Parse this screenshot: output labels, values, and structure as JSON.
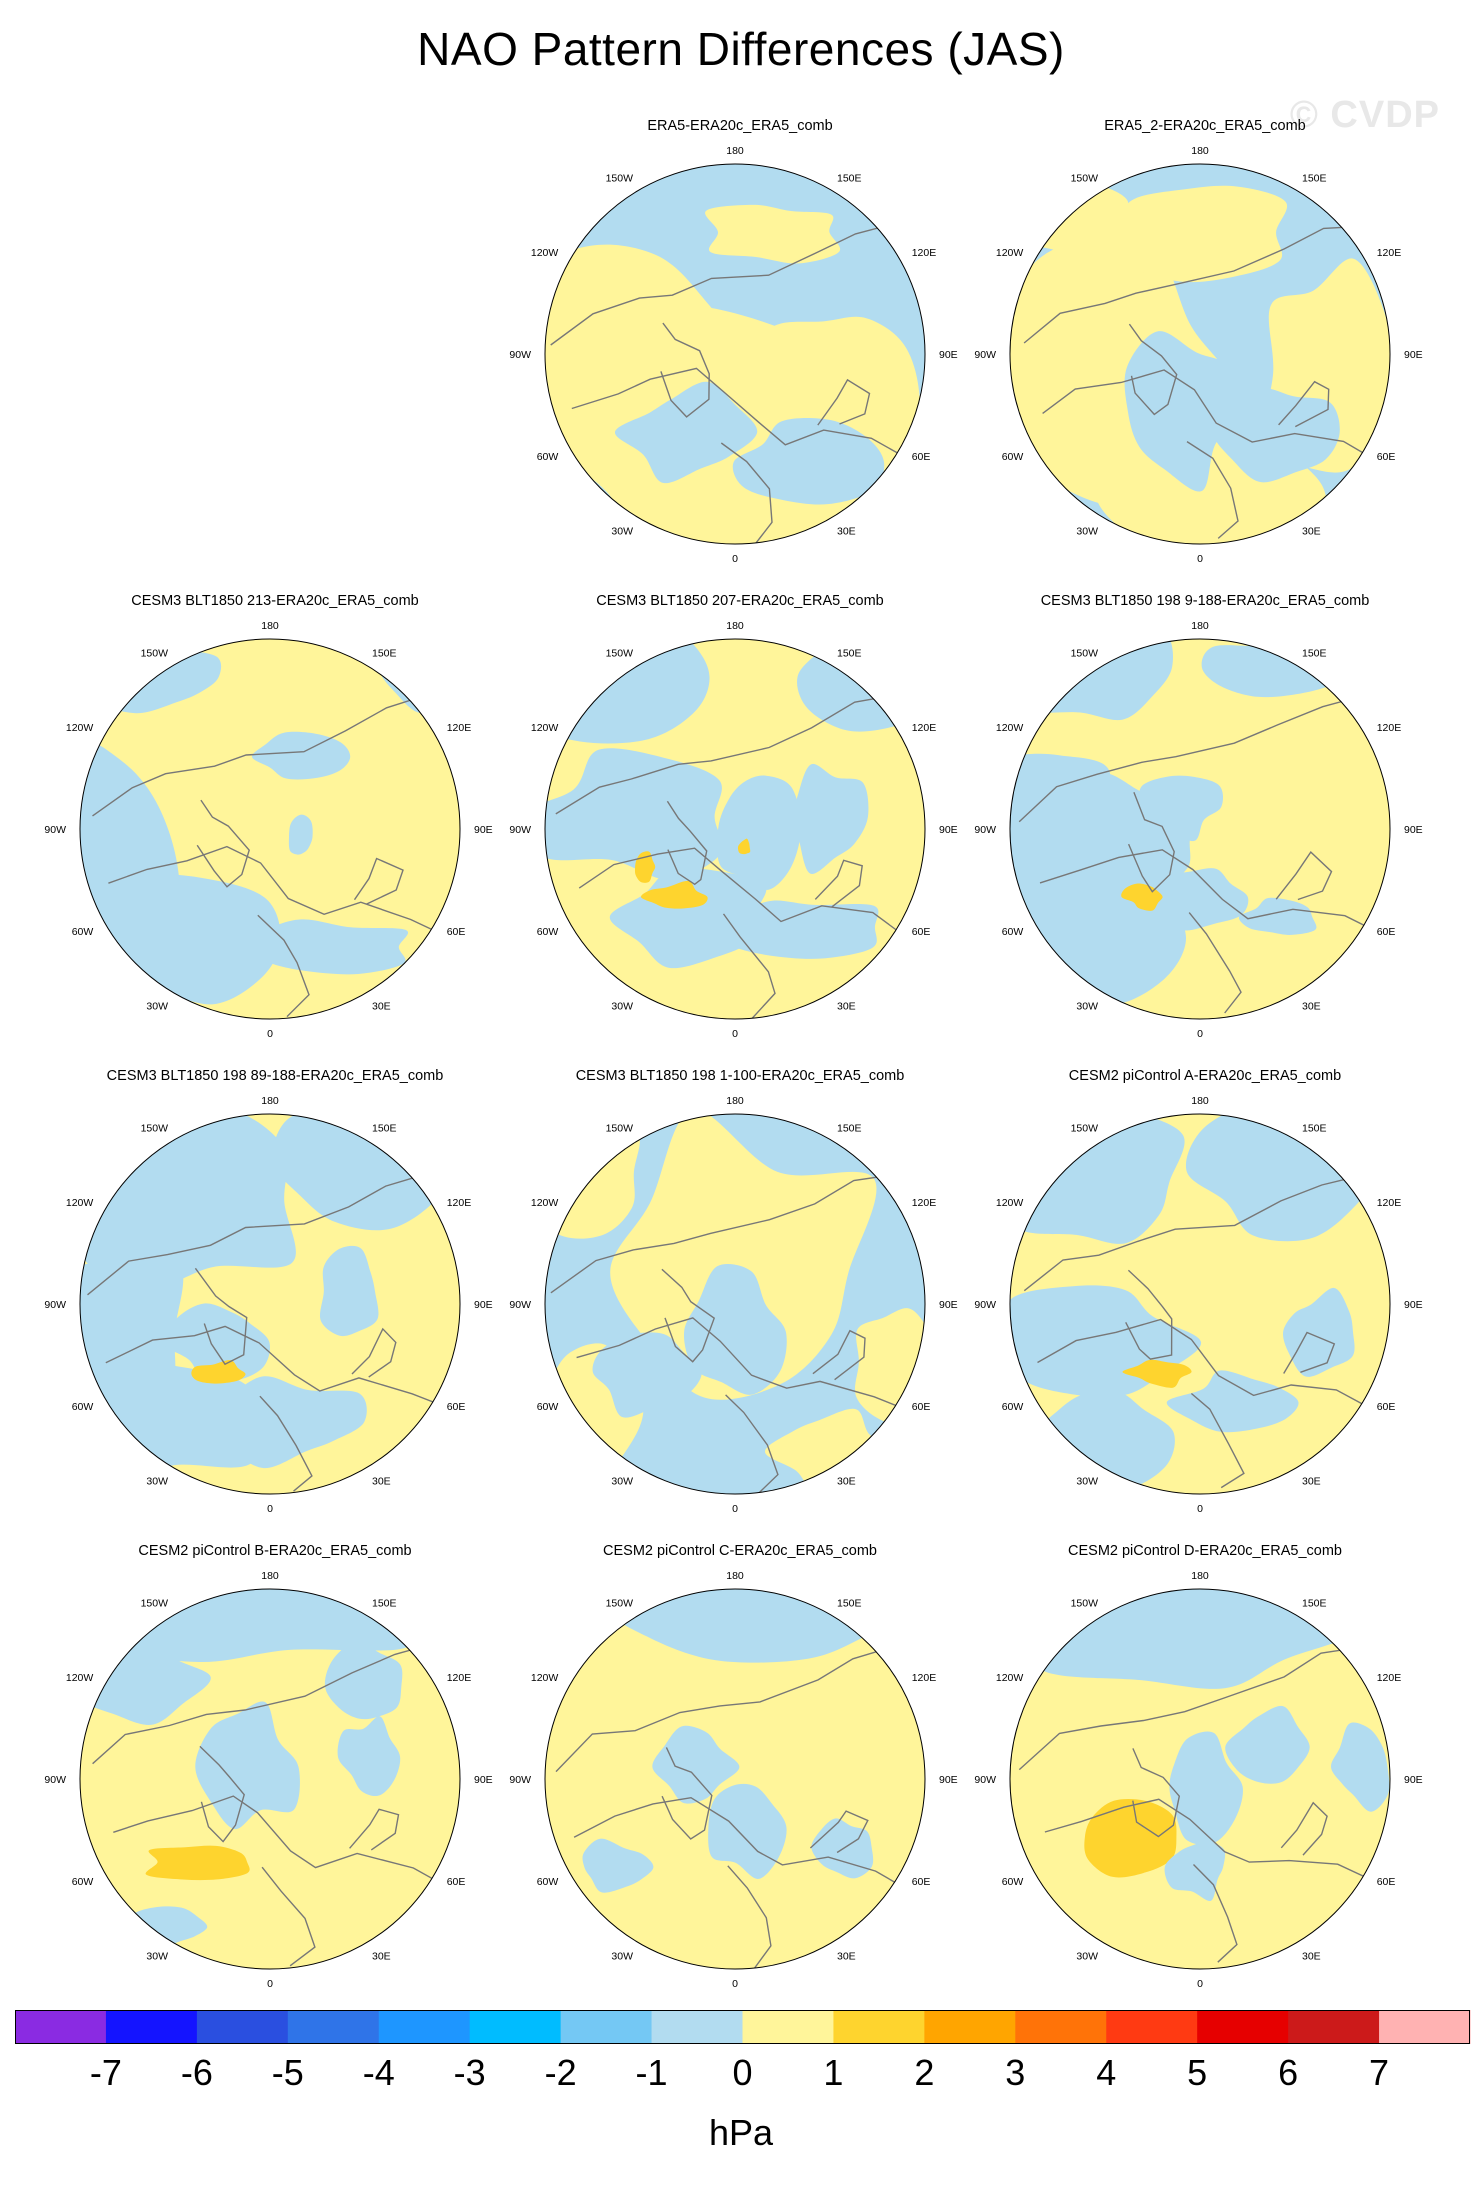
{
  "title": "NAO Pattern Differences (JAS)",
  "watermark": "© CVDP",
  "colors": {
    "blue_light": "#b2dcf0",
    "yellow_light": "#fff59a",
    "yellow_mid": "#fed42e",
    "coast": "#777777"
  },
  "lon_labels": [
    "180",
    "150E",
    "120E",
    "90E",
    "60E",
    "30E",
    "0",
    "30W",
    "60W",
    "90W",
    "120W",
    "150W"
  ],
  "panels": [
    {
      "title": "ERA5-ERA20c_ERA5_comb"
    },
    {
      "title": "ERA5_2-ERA20c_ERA5_comb"
    },
    {
      "title": "CESM3 BLT1850 213-ERA20c_ERA5_comb"
    },
    {
      "title": "CESM3 BLT1850 207-ERA20c_ERA5_comb"
    },
    {
      "title": "CESM3 BLT1850 198 9-188-ERA20c_ERA5_comb"
    },
    {
      "title": "CESM3 BLT1850 198 89-188-ERA20c_ERA5_comb"
    },
    {
      "title": "CESM3 BLT1850 198 1-100-ERA20c_ERA5_comb"
    },
    {
      "title": "CESM2 piControl A-ERA20c_ERA5_comb"
    },
    {
      "title": "CESM2 piControl B-ERA20c_ERA5_comb"
    },
    {
      "title": "CESM2 piControl C-ERA20c_ERA5_comb"
    },
    {
      "title": "CESM2 piControl D-ERA20c_ERA5_comb"
    }
  ],
  "colorbar": {
    "colors": [
      "#8a2be2",
      "#1414ff",
      "#2a4fe0",
      "#2f74e8",
      "#1e96ff",
      "#00bcff",
      "#74c8f4",
      "#b2dcf0",
      "#fff59a",
      "#fed42e",
      "#ffa500",
      "#ff7308",
      "#ff3a12",
      "#e60000",
      "#cc1a1a",
      "#ffb2b2"
    ],
    "labels": [
      "-7",
      "-6",
      "-5",
      "-4",
      "-3",
      "-2",
      "-1",
      "0",
      "1",
      "2",
      "3",
      "4",
      "5",
      "6",
      "7"
    ],
    "units": "hPa"
  }
}
